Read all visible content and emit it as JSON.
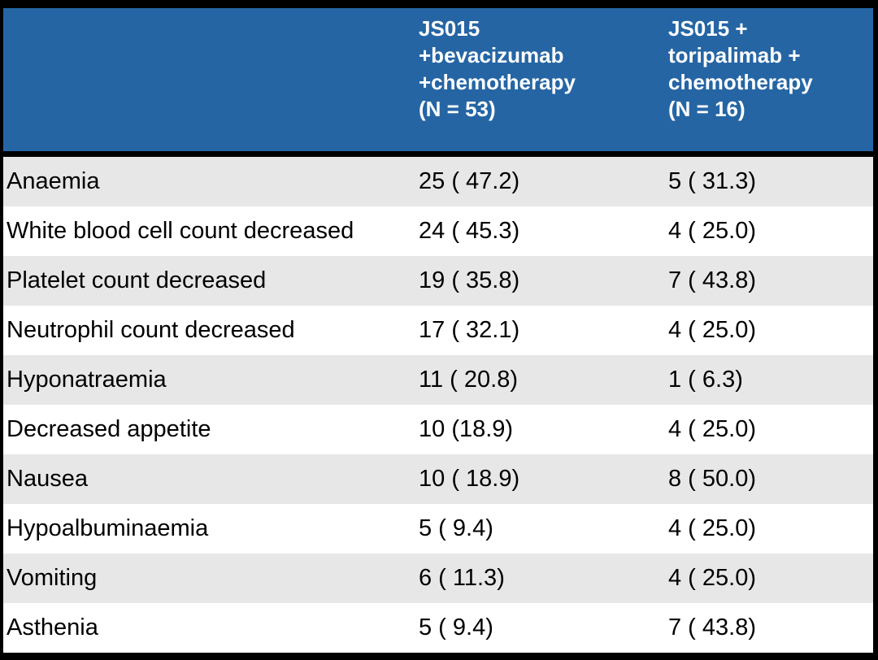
{
  "colors": {
    "frame_bg": "#000000",
    "header_bg": "#2565A4",
    "header_text": "#FFFFFF",
    "row_bg": "#FFFFFF",
    "row_alt_bg": "#E7E7E7",
    "body_text": "#000000"
  },
  "table": {
    "header": {
      "term": "",
      "arm1": "JS015\n+bevacizumab\n+chemotherapy\n(N = 53)",
      "arm2": "JS015 +\ntoripalimab +\nchemotherapy\n(N = 16)"
    },
    "rows": [
      {
        "term": "Anaemia",
        "arm1": "25 ( 47.2)",
        "arm2": "5 ( 31.3)"
      },
      {
        "term": "White blood cell count decreased",
        "arm1": "24 ( 45.3)",
        "arm2": "4 ( 25.0)"
      },
      {
        "term": "Platelet count decreased",
        "arm1": "19 ( 35.8)",
        "arm2": "7 ( 43.8)"
      },
      {
        "term": "Neutrophil count decreased",
        "arm1": "17 ( 32.1)",
        "arm2": "4 ( 25.0)"
      },
      {
        "term": "Hyponatraemia",
        "arm1": "11 ( 20.8)",
        "arm2": "1 ( 6.3)"
      },
      {
        "term": "Decreased appetite",
        "arm1": "10 (18.9)",
        "arm2": "4 ( 25.0)"
      },
      {
        "term": "Nausea",
        "arm1": "10 ( 18.9)",
        "arm2": "8 ( 50.0)"
      },
      {
        "term": "Hypoalbuminaemia",
        "arm1": "5 ( 9.4)",
        "arm2": "4 ( 25.0)"
      },
      {
        "term": "Vomiting",
        "arm1": "6 ( 11.3)",
        "arm2": "4 ( 25.0)"
      },
      {
        "term": "Asthenia",
        "arm1": "5 ( 9.4)",
        "arm2": "7 ( 43.8)"
      }
    ]
  },
  "chart_data": {
    "type": "table",
    "columns": [
      "",
      "JS015 +bevacizumab +chemotherapy (N = 53)",
      "JS015 + toripalimab + chemotherapy (N = 16)"
    ],
    "rows": [
      [
        "Anaemia",
        "25 ( 47.2)",
        "5 ( 31.3)"
      ],
      [
        "White blood cell count decreased",
        "24 ( 45.3)",
        "4 ( 25.0)"
      ],
      [
        "Platelet count decreased",
        "19 ( 35.8)",
        "7 ( 43.8)"
      ],
      [
        "Neutrophil count decreased",
        "17 ( 32.1)",
        "4 ( 25.0)"
      ],
      [
        "Hyponatraemia",
        "11 ( 20.8)",
        "1 ( 6.3)"
      ],
      [
        "Decreased appetite",
        "10 (18.9)",
        "4 ( 25.0)"
      ],
      [
        "Nausea",
        "10 ( 18.9)",
        "8 ( 50.0)"
      ],
      [
        "Hypoalbuminaemia",
        "5 ( 9.4)",
        "4 ( 25.0)"
      ],
      [
        "Vomiting",
        "6 ( 11.3)",
        "4 ( 25.0)"
      ],
      [
        "Asthenia",
        "5 ( 9.4)",
        "7 ( 43.8)"
      ]
    ]
  }
}
